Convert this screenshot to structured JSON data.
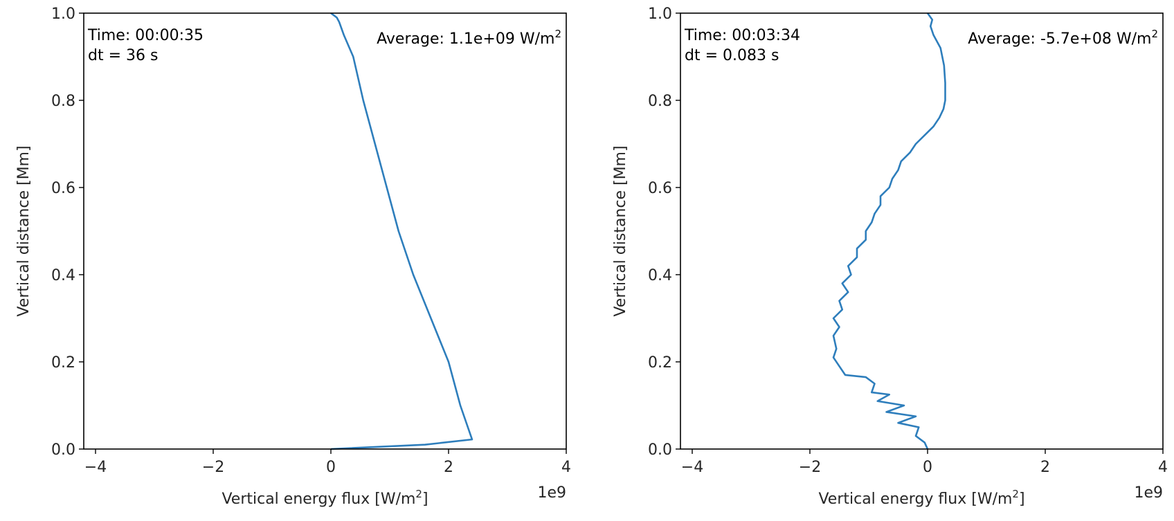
{
  "chart_data": [
    {
      "type": "line",
      "xlabel": "Vertical energy flux [W/m",
      "xlabel_sup": "2",
      "xlabel_end": "]",
      "ylabel": "Vertical distance [Mm]",
      "xlim": [
        -4.2,
        4.0
      ],
      "ylim": [
        0.0,
        1.0
      ],
      "xticks": [
        -4,
        -2,
        0,
        2,
        4
      ],
      "xtick_labels": [
        "−4",
        "−2",
        "0",
        "2",
        "4"
      ],
      "yticks": [
        0.0,
        0.2,
        0.4,
        0.6,
        0.8,
        1.0
      ],
      "ytick_labels": [
        "0.0",
        "0.2",
        "0.4",
        "0.6",
        "0.8",
        "1.0"
      ],
      "x_offset_label": "1e9",
      "annotation_time": "Time: 00:00:35",
      "annotation_dt": "dt = 36 s",
      "annotation_avg": "Average: 1.1e+09 W/m",
      "annotation_avg_sup": "2",
      "grid": false,
      "color": "#2e7ebc",
      "series": [
        {
          "x": [
            0.0,
            1.6,
            2.4,
            2.2,
            2.0,
            1.7,
            1.4,
            1.15,
            0.95,
            0.75,
            0.55,
            0.38,
            0.22,
            0.14,
            0.1,
            0.0
          ],
          "y": [
            0.0,
            0.01,
            0.022,
            0.1,
            0.2,
            0.3,
            0.4,
            0.5,
            0.6,
            0.7,
            0.8,
            0.9,
            0.95,
            0.98,
            0.99,
            1.0
          ]
        }
      ]
    },
    {
      "type": "line",
      "xlabel": "Vertical energy flux [W/m",
      "xlabel_sup": "2",
      "xlabel_end": "]",
      "ylabel": "Vertical distance [Mm]",
      "xlim": [
        -4.2,
        4.0
      ],
      "ylim": [
        0.0,
        1.0
      ],
      "xticks": [
        -4,
        -2,
        0,
        2,
        4
      ],
      "xtick_labels": [
        "−4",
        "−2",
        "0",
        "2",
        "4"
      ],
      "yticks": [
        0.0,
        0.2,
        0.4,
        0.6,
        0.8,
        1.0
      ],
      "ytick_labels": [
        "0.0",
        "0.2",
        "0.4",
        "0.6",
        "0.8",
        "1.0"
      ],
      "x_offset_label": "1e9",
      "annotation_time": "Time: 00:03:34",
      "annotation_dt": "dt = 0.083 s",
      "annotation_avg": "Average: -5.7e+08 W/m",
      "annotation_avg_sup": "2",
      "grid": false,
      "color": "#2e7ebc",
      "series": [
        {
          "x": [
            0.0,
            -0.05,
            -0.2,
            -0.15,
            -0.5,
            -0.2,
            -0.7,
            -0.4,
            -0.85,
            -0.65,
            -0.95,
            -0.9,
            -1.05,
            -1.4,
            -1.5,
            -1.6,
            -1.55,
            -1.6,
            -1.5,
            -1.6,
            -1.45,
            -1.5,
            -1.35,
            -1.45,
            -1.3,
            -1.35,
            -1.2,
            -1.2,
            -1.05,
            -1.05,
            -0.95,
            -0.9,
            -0.8,
            -0.8,
            -0.65,
            -0.6,
            -0.5,
            -0.45,
            -0.3,
            -0.2,
            -0.05,
            0.1,
            0.2,
            0.27,
            0.3,
            0.3,
            0.28,
            0.22,
            0.1,
            0.05,
            0.08,
            0.0
          ],
          "y": [
            0.0,
            0.015,
            0.03,
            0.05,
            0.06,
            0.075,
            0.085,
            0.1,
            0.11,
            0.125,
            0.13,
            0.15,
            0.165,
            0.17,
            0.19,
            0.21,
            0.23,
            0.26,
            0.28,
            0.3,
            0.32,
            0.34,
            0.36,
            0.38,
            0.4,
            0.42,
            0.44,
            0.46,
            0.48,
            0.5,
            0.52,
            0.54,
            0.56,
            0.58,
            0.6,
            0.62,
            0.64,
            0.66,
            0.68,
            0.7,
            0.72,
            0.74,
            0.76,
            0.78,
            0.8,
            0.84,
            0.88,
            0.92,
            0.95,
            0.97,
            0.985,
            1.0
          ]
        }
      ]
    }
  ]
}
